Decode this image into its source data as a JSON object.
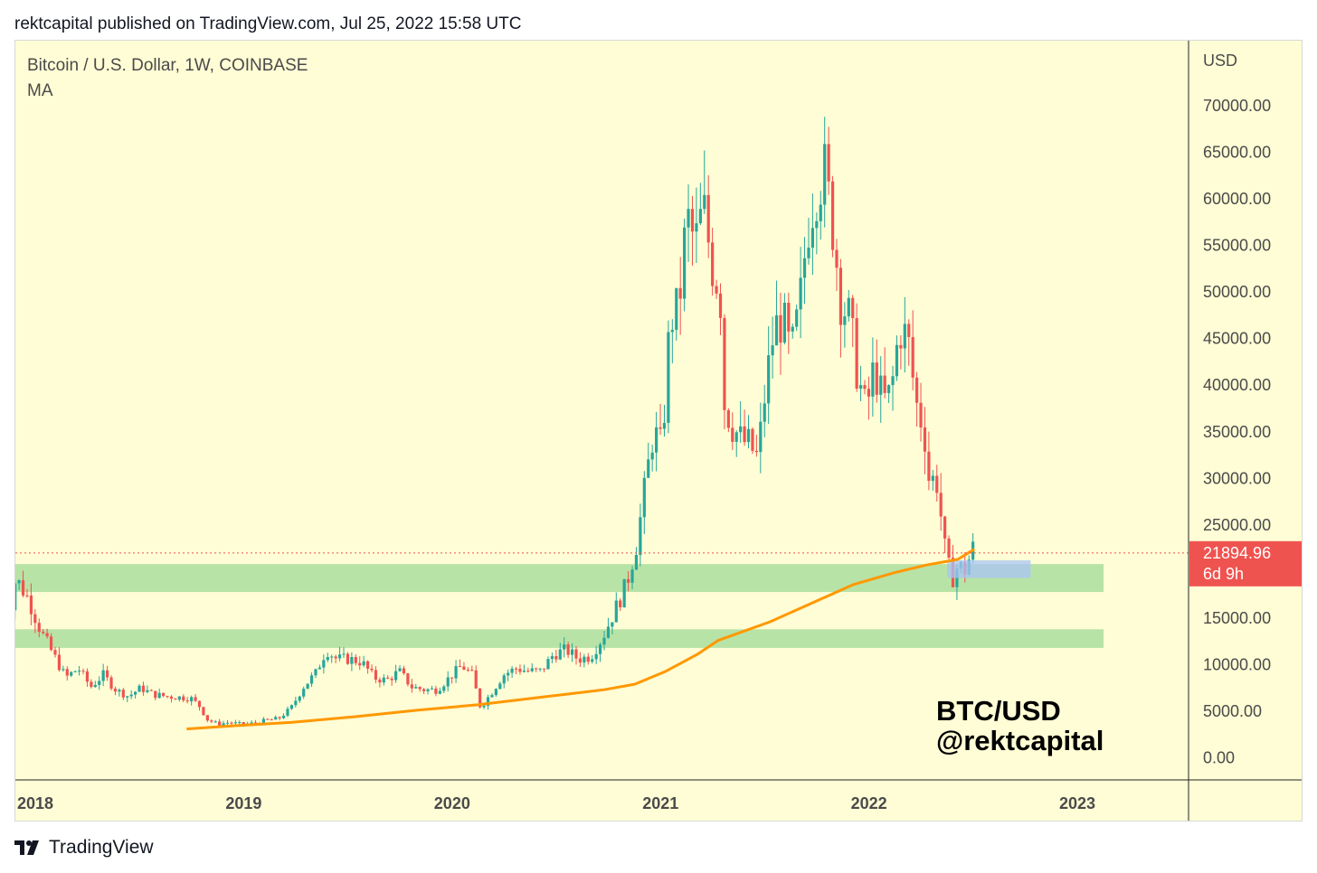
{
  "header": {
    "published": "rektcapital published on TradingView.com, Jul 25, 2022 15:58 UTC"
  },
  "symbol": {
    "title": "Bitcoin / U.S. Dollar, 1W, COINBASE",
    "indicator": "MA"
  },
  "watermark": {
    "line1": "BTC/USD",
    "line2": "@rektcapital"
  },
  "footer": {
    "brand": "TradingView"
  },
  "colors": {
    "background": "#fffdd5",
    "up": "#26a69a",
    "down": "#ef5350",
    "ma": "#ff9800",
    "zone": "#b8e3a6",
    "box": "#a9c4f5",
    "price_label": "#ef5350"
  },
  "chart_data": {
    "type": "candlestick",
    "title": "Bitcoin / U.S. Dollar, 1W, COINBASE",
    "currency": "USD",
    "y_ticks": [
      "70000.00",
      "65000.00",
      "60000.00",
      "55000.00",
      "50000.00",
      "45000.00",
      "40000.00",
      "35000.00",
      "30000.00",
      "25000.00",
      "15000.00",
      "10000.00",
      "5000.00",
      "0.00"
    ],
    "ylim": [
      0,
      75000
    ],
    "x_labels": [
      "2018",
      "2019",
      "2020",
      "2021",
      "2022",
      "2023"
    ],
    "xlim": [
      2017.9,
      2023.5
    ],
    "current_price": {
      "value": 21894.96,
      "label": "21894.96",
      "countdown": "6d 9h"
    },
    "support_zones": [
      {
        "low": 17700,
        "high": 20700
      },
      {
        "low": 11700,
        "high": 13700
      }
    ],
    "highlight_box": {
      "start": 2022.45,
      "end": 2022.85,
      "low": 19200,
      "high": 21100
    },
    "ma": [
      [
        2018.8,
        3000
      ],
      [
        2019.0,
        3300
      ],
      [
        2019.3,
        3700
      ],
      [
        2019.6,
        4300
      ],
      [
        2019.9,
        5000
      ],
      [
        2020.2,
        5600
      ],
      [
        2020.5,
        6400
      ],
      [
        2020.8,
        7200
      ],
      [
        2020.95,
        7800
      ],
      [
        2021.1,
        9200
      ],
      [
        2021.25,
        11000
      ],
      [
        2021.35,
        12500
      ],
      [
        2021.6,
        14500
      ],
      [
        2021.8,
        16500
      ],
      [
        2022.0,
        18500
      ],
      [
        2022.2,
        19800
      ],
      [
        2022.35,
        20600
      ],
      [
        2022.5,
        21200
      ],
      [
        2022.58,
        22300
      ]
    ],
    "price_path": [
      [
        2017.9,
        7500
      ],
      [
        2017.94,
        14500
      ],
      [
        2017.98,
        19200
      ],
      [
        2018.04,
        17000
      ],
      [
        2018.1,
        13500
      ],
      [
        2018.16,
        11000
      ],
      [
        2018.22,
        8500
      ],
      [
        2018.28,
        9500
      ],
      [
        2018.34,
        7500
      ],
      [
        2018.4,
        8800
      ],
      [
        2018.46,
        7200
      ],
      [
        2018.52,
        6500
      ],
      [
        2018.58,
        7400
      ],
      [
        2018.64,
        6700
      ],
      [
        2018.7,
        6500
      ],
      [
        2018.76,
        6400
      ],
      [
        2018.82,
        6300
      ],
      [
        2018.86,
        5500
      ],
      [
        2018.9,
        4000
      ],
      [
        2018.95,
        3500
      ],
      [
        2019.0,
        3700
      ],
      [
        2019.06,
        3500
      ],
      [
        2019.12,
        3600
      ],
      [
        2019.18,
        3900
      ],
      [
        2019.24,
        4100
      ],
      [
        2019.3,
        5200
      ],
      [
        2019.36,
        7500
      ],
      [
        2019.42,
        9000
      ],
      [
        2019.47,
        11500
      ],
      [
        2019.52,
        10500
      ],
      [
        2019.58,
        10500
      ],
      [
        2019.64,
        10200
      ],
      [
        2019.7,
        8500
      ],
      [
        2019.76,
        8200
      ],
      [
        2019.82,
        9200
      ],
      [
        2019.88,
        7500
      ],
      [
        2019.94,
        7200
      ],
      [
        2020.0,
        7200
      ],
      [
        2020.06,
        8500
      ],
      [
        2020.12,
        9800
      ],
      [
        2020.17,
        8800
      ],
      [
        2020.21,
        5300
      ],
      [
        2020.26,
        6800
      ],
      [
        2020.32,
        8800
      ],
      [
        2020.38,
        9500
      ],
      [
        2020.44,
        9200
      ],
      [
        2020.5,
        9200
      ],
      [
        2020.56,
        11000
      ],
      [
        2020.62,
        11500
      ],
      [
        2020.68,
        10500
      ],
      [
        2020.74,
        10800
      ],
      [
        2020.8,
        13000
      ],
      [
        2020.86,
        16000
      ],
      [
        2020.91,
        18500
      ],
      [
        2020.96,
        23000
      ],
      [
        2021.0,
        29000
      ],
      [
        2021.04,
        35000
      ],
      [
        2021.08,
        33000
      ],
      [
        2021.12,
        47000
      ],
      [
        2021.16,
        48000
      ],
      [
        2021.2,
        58000
      ],
      [
        2021.24,
        55000
      ],
      [
        2021.28,
        59000
      ],
      [
        2021.32,
        53000
      ],
      [
        2021.36,
        50000
      ],
      [
        2021.38,
        38000
      ],
      [
        2021.42,
        35500
      ],
      [
        2021.46,
        34000
      ],
      [
        2021.5,
        33500
      ],
      [
        2021.54,
        32000
      ],
      [
        2021.58,
        40000
      ],
      [
        2021.62,
        46000
      ],
      [
        2021.66,
        47000
      ],
      [
        2021.7,
        43000
      ],
      [
        2021.74,
        48000
      ],
      [
        2021.78,
        57000
      ],
      [
        2021.82,
        61000
      ],
      [
        2021.86,
        63000
      ],
      [
        2021.9,
        57000
      ],
      [
        2021.94,
        49000
      ],
      [
        2021.98,
        47000
      ],
      [
        2022.02,
        41000
      ],
      [
        2022.06,
        37000
      ],
      [
        2022.1,
        42000
      ],
      [
        2022.14,
        38000
      ],
      [
        2022.18,
        39000
      ],
      [
        2022.22,
        46000
      ],
      [
        2022.26,
        45000
      ],
      [
        2022.3,
        38000
      ],
      [
        2022.34,
        35000
      ],
      [
        2022.36,
        30000
      ],
      [
        2022.4,
        29500
      ],
      [
        2022.44,
        22000
      ],
      [
        2022.47,
        19000
      ],
      [
        2022.5,
        20500
      ],
      [
        2022.54,
        20000
      ],
      [
        2022.57,
        22600
      ],
      [
        2022.58,
        21900
      ]
    ]
  }
}
